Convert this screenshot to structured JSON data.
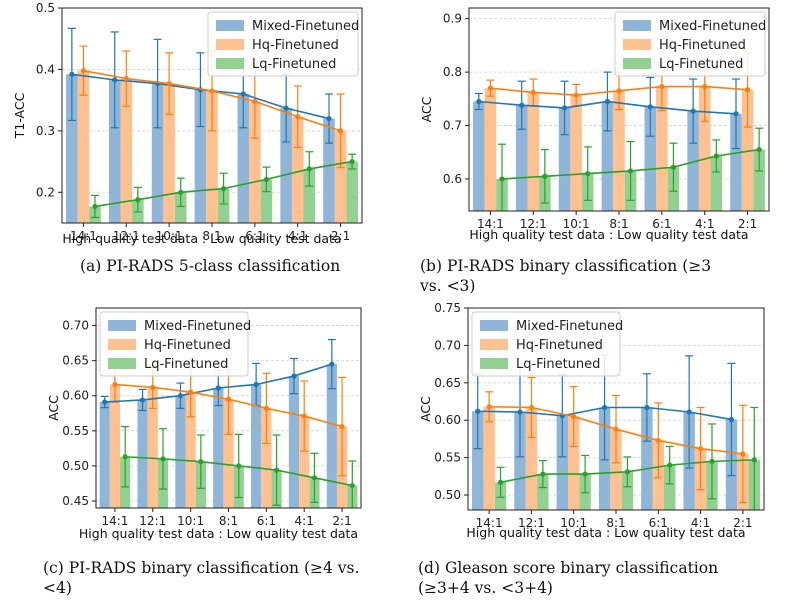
{
  "colors": {
    "series": [
      "#1f77b4",
      "#ff7f0e",
      "#2ca02c"
    ],
    "bar": [
      "#8fb6d8",
      "#ffc18f",
      "#93d193"
    ],
    "grid": "#d9d9d9"
  },
  "chart_data": [
    {
      "type": "bar",
      "panel": "a",
      "caption": [
        "(a) PI-RADS 5-class classification"
      ],
      "xlabel": "High quality test data : Low quality test data",
      "ylabel": "T1-ACC",
      "ylim": [
        0.15,
        0.5
      ],
      "yticks": [
        0.2,
        0.3,
        0.4,
        0.5
      ],
      "ytick_labels": [
        "0.2",
        "0.3",
        "0.4",
        "0.5"
      ],
      "grid": true,
      "legend": "top-right",
      "categories": [
        "14:1",
        "12:1",
        "10:1",
        "8:1",
        "6:1",
        "4:1",
        "2:1"
      ],
      "series": [
        {
          "name": "Mixed-Finetuned",
          "values": [
            0.392,
            0.383,
            0.377,
            0.367,
            0.36,
            0.337,
            0.32
          ],
          "err": [
            0.075,
            0.078,
            0.072,
            0.06,
            0.055,
            0.055,
            0.04
          ]
        },
        {
          "name": "Hq-Finetuned",
          "values": [
            0.398,
            0.385,
            0.377,
            0.365,
            0.348,
            0.323,
            0.3
          ],
          "err": [
            0.04,
            0.045,
            0.05,
            0.065,
            0.06,
            0.05,
            0.06
          ]
        },
        {
          "name": "Lq-Finetuned",
          "values": [
            0.177,
            0.188,
            0.2,
            0.206,
            0.221,
            0.238,
            0.25
          ],
          "err": [
            0.018,
            0.02,
            0.023,
            0.025,
            0.02,
            0.028,
            0.012
          ]
        }
      ]
    },
    {
      "type": "bar",
      "panel": "b",
      "caption": [
        "(b) PI-RADS binary classification (≥3",
        "vs. <3)"
      ],
      "xlabel": "High quality test data : Low quality test data",
      "ylabel": "ACC",
      "ylim": [
        0.54,
        0.92
      ],
      "yticks": [
        0.6,
        0.7,
        0.8,
        0.9
      ],
      "ytick_labels": [
        "0.6",
        "0.7",
        "0.8",
        "0.9"
      ],
      "grid": true,
      "legend": "top-right",
      "categories": [
        "14:1",
        "12:1",
        "10:1",
        "8:1",
        "6:1",
        "4:1",
        "2:1"
      ],
      "series": [
        {
          "name": "Mixed-Finetuned",
          "values": [
            0.745,
            0.738,
            0.733,
            0.745,
            0.735,
            0.727,
            0.722
          ],
          "err": [
            0.015,
            0.045,
            0.05,
            0.055,
            0.055,
            0.06,
            0.065
          ]
        },
        {
          "name": "Hq-Finetuned",
          "values": [
            0.77,
            0.762,
            0.757,
            0.765,
            0.773,
            0.773,
            0.767
          ],
          "err": [
            0.015,
            0.025,
            0.02,
            0.035,
            0.045,
            0.065,
            0.07
          ]
        },
        {
          "name": "Lq-Finetuned",
          "values": [
            0.6,
            0.605,
            0.61,
            0.615,
            0.622,
            0.643,
            0.655
          ],
          "err": [
            0.065,
            0.05,
            0.05,
            0.055,
            0.045,
            0.03,
            0.04
          ]
        }
      ]
    },
    {
      "type": "bar",
      "panel": "c",
      "caption": [
        "(c) PI-RADS binary classification (≥4 vs.",
        "<4)"
      ],
      "xlabel": "High quality test data : Low quality test data",
      "ylabel": "ACC",
      "ylim": [
        0.44,
        0.725
      ],
      "yticks": [
        0.45,
        0.5,
        0.55,
        0.6,
        0.65,
        0.7
      ],
      "ytick_labels": [
        "0.45",
        "0.50",
        "0.55",
        "0.60",
        "0.65",
        "0.70"
      ],
      "grid": true,
      "legend": "top-left",
      "categories": [
        "14:1",
        "12:1",
        "10:1",
        "8:1",
        "6:1",
        "4:1",
        "2:1"
      ],
      "series": [
        {
          "name": "Mixed-Finetuned",
          "values": [
            0.591,
            0.594,
            0.6,
            0.611,
            0.616,
            0.628,
            0.645
          ],
          "err": [
            0.008,
            0.015,
            0.018,
            0.025,
            0.03,
            0.025,
            0.035
          ]
        },
        {
          "name": "Hq-Finetuned",
          "values": [
            0.616,
            0.612,
            0.605,
            0.595,
            0.582,
            0.571,
            0.556
          ],
          "err": [
            0.025,
            0.03,
            0.035,
            0.05,
            0.05,
            0.05,
            0.07
          ]
        },
        {
          "name": "Lq-Finetuned",
          "values": [
            0.513,
            0.51,
            0.506,
            0.5,
            0.494,
            0.483,
            0.472
          ],
          "err": [
            0.043,
            0.043,
            0.038,
            0.045,
            0.05,
            0.035,
            0.035
          ]
        }
      ]
    },
    {
      "type": "bar",
      "panel": "d",
      "caption": [
        "(d) Gleason score binary classification",
        "(≥3+4 vs. <3+4)"
      ],
      "xlabel": "High quality test data : Low quality test data",
      "ylabel": "ACC",
      "ylim": [
        0.48,
        0.75
      ],
      "yticks": [
        0.5,
        0.55,
        0.6,
        0.65,
        0.7,
        0.75
      ],
      "ytick_labels": [
        "0.50",
        "0.55",
        "0.60",
        "0.65",
        "0.70",
        "0.75"
      ],
      "grid": true,
      "legend": "top-left",
      "categories": [
        "14:1",
        "12:1",
        "10:1",
        "8:1",
        "6:1",
        "4:1",
        "2:1"
      ],
      "series": [
        {
          "name": "Mixed-Finetuned",
          "values": [
            0.612,
            0.611,
            0.606,
            0.617,
            0.617,
            0.611,
            0.601
          ],
          "err": [
            0.05,
            0.06,
            0.055,
            0.07,
            0.045,
            0.075,
            0.075
          ]
        },
        {
          "name": "Hq-Finetuned",
          "values": [
            0.618,
            0.617,
            0.605,
            0.588,
            0.573,
            0.562,
            0.555
          ],
          "err": [
            0.02,
            0.04,
            0.04,
            0.045,
            0.05,
            0.055,
            0.065
          ]
        },
        {
          "name": "Lq-Finetuned",
          "values": [
            0.517,
            0.528,
            0.528,
            0.531,
            0.54,
            0.545,
            0.547
          ],
          "err": [
            0.02,
            0.018,
            0.025,
            0.02,
            0.025,
            0.05,
            0.07
          ]
        }
      ]
    }
  ]
}
